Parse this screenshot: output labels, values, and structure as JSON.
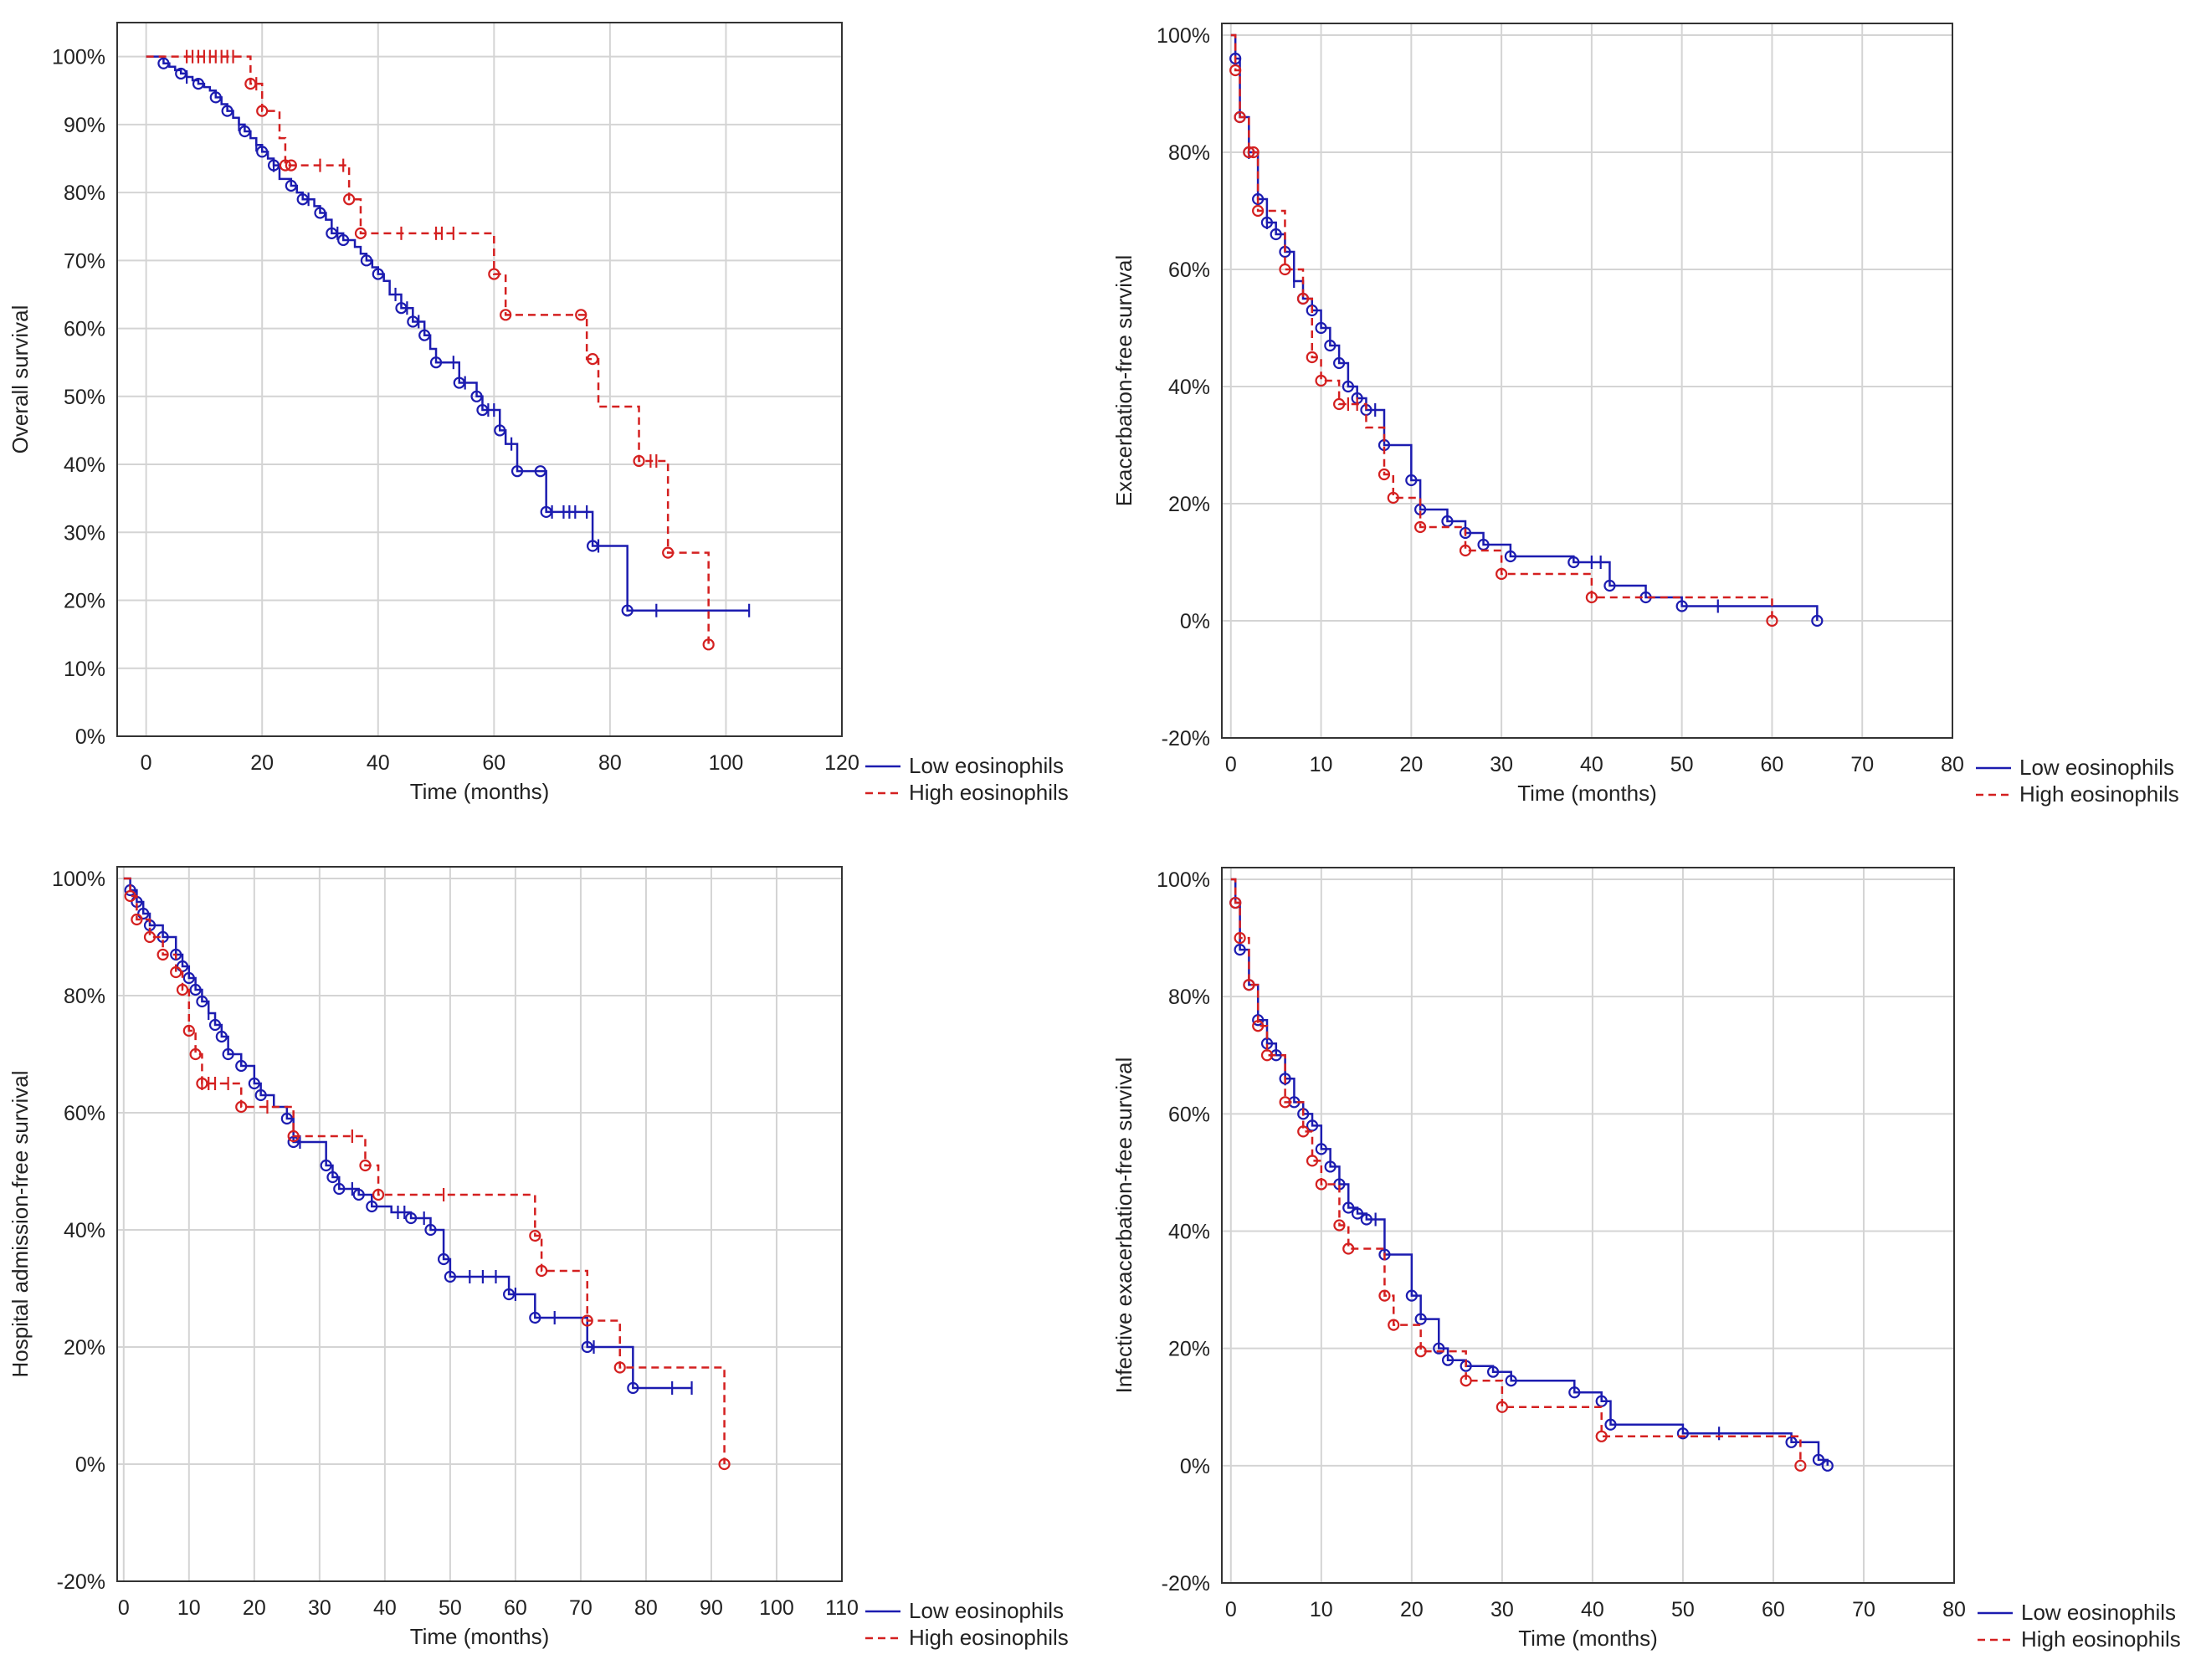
{
  "legend_labels": {
    "low": "Low eosinophils",
    "high": "High eosinophils"
  },
  "colors": {
    "low": "#1c1cb0",
    "high": "#d42020",
    "grid": "#d4d4d4",
    "axis": "#333333"
  },
  "chart_data": [
    {
      "type": "line",
      "subtype": "kaplan-meier",
      "xlabel": "Time (months)",
      "ylabel": "Overall survival",
      "xlim": [
        -5,
        120
      ],
      "xticks": [
        0,
        20,
        40,
        60,
        80,
        100,
        120
      ],
      "ylim": [
        0,
        1.05
      ],
      "yticks": [
        0,
        0.1,
        0.2,
        0.3,
        0.4,
        0.5,
        0.6,
        0.7,
        0.8,
        0.9,
        1.0
      ],
      "grid": true,
      "legend": "bottom-right",
      "series": [
        {
          "key": "low",
          "name": "Low eosinophils",
          "x": [
            0,
            3,
            4,
            5,
            6,
            7,
            8,
            9,
            10,
            11,
            12,
            13,
            14,
            15,
            16,
            17,
            18,
            19,
            20,
            21,
            22,
            23,
            25,
            26,
            27,
            29,
            30,
            31,
            32,
            34,
            36,
            37,
            38,
            39,
            40,
            41,
            42,
            44,
            46,
            48,
            49,
            50,
            54,
            57,
            58,
            61,
            62,
            64,
            69,
            77,
            83,
            104
          ],
          "y": [
            1.0,
            0.99,
            0.985,
            0.98,
            0.975,
            0.97,
            0.965,
            0.96,
            0.955,
            0.95,
            0.94,
            0.93,
            0.92,
            0.91,
            0.9,
            0.89,
            0.88,
            0.87,
            0.86,
            0.85,
            0.84,
            0.82,
            0.81,
            0.8,
            0.79,
            0.78,
            0.77,
            0.76,
            0.74,
            0.73,
            0.72,
            0.71,
            0.7,
            0.69,
            0.68,
            0.67,
            0.65,
            0.63,
            0.61,
            0.59,
            0.57,
            0.55,
            0.52,
            0.5,
            0.48,
            0.45,
            0.43,
            0.39,
            0.33,
            0.28,
            0.185,
            0.185
          ],
          "censored": [
            7,
            16,
            19,
            22,
            28,
            33,
            43,
            45,
            47,
            53,
            55,
            59,
            60,
            63,
            70,
            72,
            73,
            74,
            76,
            78,
            88,
            104
          ],
          "events": [
            3,
            6,
            9,
            12,
            14,
            17,
            20,
            22,
            25,
            27,
            30,
            32,
            34,
            38,
            40,
            44,
            46,
            48,
            50,
            54,
            57,
            58,
            61,
            64,
            68,
            69,
            77,
            83
          ]
        },
        {
          "key": "high",
          "name": "High eosinophils",
          "x": [
            0,
            18,
            20,
            23,
            24,
            35,
            37,
            60,
            62,
            76,
            78,
            85,
            90,
            97
          ],
          "y": [
            1.0,
            0.96,
            0.92,
            0.88,
            0.84,
            0.79,
            0.74,
            0.68,
            0.62,
            0.555,
            0.485,
            0.405,
            0.27,
            0.135
          ],
          "censored": [
            7,
            8,
            9,
            10,
            11,
            12,
            13,
            14,
            15,
            19,
            30,
            34,
            44,
            50,
            51,
            53,
            87,
            88
          ],
          "events": [
            18,
            20,
            24,
            25,
            35,
            37,
            60,
            62,
            75,
            77,
            85,
            90,
            97
          ]
        }
      ]
    },
    {
      "type": "line",
      "subtype": "kaplan-meier",
      "xlabel": "Time (months)",
      "ylabel": "Exacerbation-free survival",
      "xlim": [
        -1,
        80
      ],
      "xticks": [
        0,
        10,
        20,
        30,
        40,
        50,
        60,
        70,
        80
      ],
      "ylim": [
        -0.2,
        1.02
      ],
      "yticks": [
        -0.2,
        0,
        0.2,
        0.4,
        0.6,
        0.8,
        1.0
      ],
      "grid": true,
      "legend": "bottom-right",
      "series": [
        {
          "key": "low",
          "name": "Low eosinophils",
          "x": [
            0,
            0.5,
            1,
            2,
            3,
            4,
            5,
            6,
            7,
            8,
            9,
            10,
            11,
            12,
            13,
            14,
            15,
            17,
            20,
            21,
            24,
            26,
            28,
            31,
            38,
            42,
            46,
            50,
            65
          ],
          "y": [
            1.0,
            0.96,
            0.86,
            0.8,
            0.72,
            0.68,
            0.66,
            0.63,
            0.58,
            0.55,
            0.53,
            0.5,
            0.47,
            0.44,
            0.4,
            0.38,
            0.36,
            0.3,
            0.24,
            0.19,
            0.17,
            0.15,
            0.13,
            0.11,
            0.1,
            0.06,
            0.04,
            0.025,
            0.0
          ],
          "censored": [
            2,
            4,
            7,
            16,
            40,
            41,
            54
          ],
          "events": [
            0.5,
            1,
            2,
            3,
            4,
            5,
            6,
            8,
            9,
            10,
            11,
            12,
            13,
            14,
            15,
            17,
            20,
            21,
            24,
            26,
            28,
            31,
            38,
            42,
            46,
            50,
            65
          ]
        },
        {
          "key": "high",
          "name": "High eosinophils",
          "x": [
            0,
            0.5,
            1,
            2,
            3,
            6,
            8,
            9,
            10,
            12,
            15,
            17,
            18,
            21,
            26,
            30,
            40,
            60
          ],
          "y": [
            1.0,
            0.94,
            0.86,
            0.8,
            0.7,
            0.6,
            0.55,
            0.45,
            0.41,
            0.37,
            0.33,
            0.25,
            0.21,
            0.16,
            0.12,
            0.08,
            0.04,
            0.0
          ],
          "censored": [
            13,
            14
          ],
          "events": [
            0.5,
            1,
            2,
            2.5,
            3,
            6,
            8,
            9,
            10,
            12,
            17,
            18,
            21,
            26,
            30,
            40,
            60
          ]
        }
      ]
    },
    {
      "type": "line",
      "subtype": "kaplan-meier",
      "xlabel": "Time (months)",
      "ylabel": "Hospital admission-free survival",
      "xlim": [
        -1,
        110
      ],
      "xticks": [
        0,
        10,
        20,
        30,
        40,
        50,
        60,
        70,
        80,
        90,
        100,
        110
      ],
      "ylim": [
        -0.2,
        1.02
      ],
      "yticks": [
        -0.2,
        0,
        0.2,
        0.4,
        0.6,
        0.8,
        1.0
      ],
      "grid": true,
      "legend": "bottom-right",
      "series": [
        {
          "key": "low",
          "name": "Low eosinophils",
          "x": [
            0,
            1,
            2,
            3,
            4,
            6,
            8,
            9,
            10,
            11,
            12,
            13,
            14,
            15,
            16,
            18,
            20,
            21,
            23,
            25,
            26,
            31,
            32,
            33,
            36,
            38,
            41,
            44,
            47,
            49,
            50,
            59,
            63,
            71,
            78,
            87
          ],
          "y": [
            1.0,
            0.98,
            0.96,
            0.94,
            0.92,
            0.9,
            0.87,
            0.85,
            0.83,
            0.81,
            0.79,
            0.77,
            0.75,
            0.73,
            0.7,
            0.68,
            0.65,
            0.63,
            0.61,
            0.59,
            0.55,
            0.51,
            0.49,
            0.47,
            0.46,
            0.44,
            0.43,
            0.42,
            0.4,
            0.35,
            0.32,
            0.29,
            0.25,
            0.2,
            0.13,
            0.13
          ],
          "censored": [
            13,
            27,
            35,
            42,
            43,
            46,
            53,
            55,
            57,
            60,
            66,
            72,
            84,
            87
          ],
          "events": [
            1,
            2,
            3,
            4,
            6,
            8,
            9,
            10,
            11,
            12,
            14,
            15,
            16,
            18,
            20,
            21,
            25,
            26,
            31,
            32,
            33,
            36,
            38,
            44,
            47,
            49,
            50,
            59,
            63,
            71,
            78
          ]
        },
        {
          "key": "high",
          "name": "High eosinophils",
          "x": [
            0,
            1,
            2,
            4,
            6,
            8,
            9,
            10,
            11,
            12,
            18,
            26,
            37,
            39,
            63,
            64,
            71,
            76,
            92
          ],
          "y": [
            1.0,
            0.97,
            0.93,
            0.9,
            0.87,
            0.84,
            0.81,
            0.74,
            0.7,
            0.65,
            0.61,
            0.56,
            0.51,
            0.46,
            0.39,
            0.33,
            0.245,
            0.165,
            0.0
          ],
          "censored": [
            12,
            13,
            14,
            16,
            22,
            35,
            49
          ],
          "events": [
            1,
            2,
            4,
            6,
            8,
            9,
            10,
            11,
            12,
            18,
            26,
            37,
            39,
            63,
            64,
            71,
            76,
            92
          ]
        }
      ]
    },
    {
      "type": "line",
      "subtype": "kaplan-meier",
      "xlabel": "Time (months)",
      "ylabel": "Infective exacerbation-free survival",
      "xlim": [
        -1,
        80
      ],
      "xticks": [
        0,
        10,
        20,
        30,
        40,
        50,
        60,
        70,
        80
      ],
      "ylim": [
        -0.2,
        1.02
      ],
      "yticks": [
        -0.2,
        0,
        0.2,
        0.4,
        0.6,
        0.8,
        1.0
      ],
      "grid": true,
      "legend": "bottom-right",
      "series": [
        {
          "key": "low",
          "name": "Low eosinophils",
          "x": [
            0,
            0.5,
            1,
            2,
            3,
            4,
            5,
            6,
            7,
            8,
            9,
            10,
            11,
            12,
            13,
            14,
            15,
            17,
            20,
            21,
            23,
            24,
            26,
            29,
            31,
            38,
            41,
            42,
            50,
            62,
            65,
            66
          ],
          "y": [
            1.0,
            0.96,
            0.88,
            0.82,
            0.76,
            0.72,
            0.7,
            0.66,
            0.62,
            0.6,
            0.58,
            0.54,
            0.51,
            0.48,
            0.44,
            0.43,
            0.42,
            0.36,
            0.29,
            0.25,
            0.2,
            0.18,
            0.17,
            0.16,
            0.145,
            0.125,
            0.11,
            0.07,
            0.055,
            0.04,
            0.01,
            0.0
          ],
          "censored": [
            6,
            16,
            54
          ],
          "events": [
            0.5,
            1,
            2,
            3,
            4,
            5,
            6,
            7,
            8,
            9,
            10,
            11,
            12,
            13,
            14,
            15,
            17,
            20,
            21,
            23,
            24,
            26,
            29,
            31,
            38,
            41,
            42,
            50,
            62,
            65,
            66
          ]
        },
        {
          "key": "high",
          "name": "High eosinophils",
          "x": [
            0,
            0.5,
            1,
            2,
            3,
            4,
            6,
            8,
            9,
            10,
            12,
            13,
            17,
            18,
            21,
            26,
            30,
            41,
            63
          ],
          "y": [
            1.0,
            0.96,
            0.9,
            0.82,
            0.75,
            0.7,
            0.62,
            0.57,
            0.52,
            0.48,
            0.41,
            0.37,
            0.29,
            0.24,
            0.195,
            0.145,
            0.1,
            0.05,
            0.0
          ],
          "censored": [],
          "events": [
            0.5,
            1,
            2,
            3,
            4,
            6,
            8,
            9,
            10,
            12,
            13,
            17,
            18,
            21,
            26,
            30,
            41,
            63
          ]
        }
      ]
    }
  ]
}
